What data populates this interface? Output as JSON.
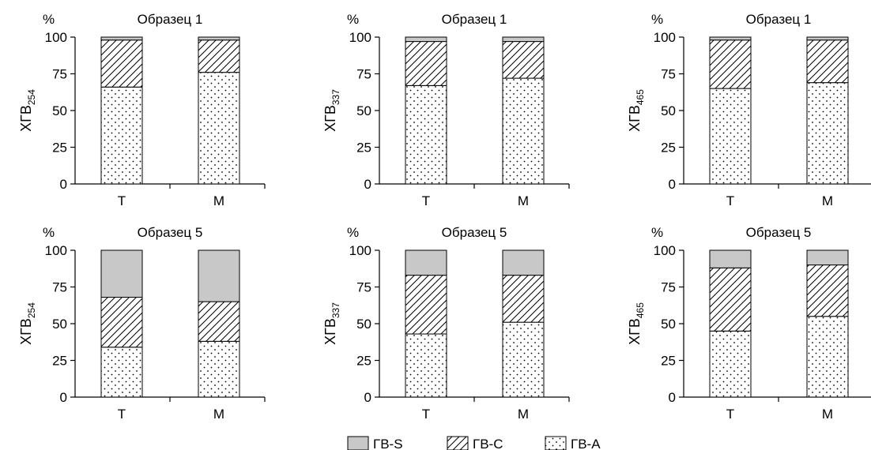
{
  "legend": [
    {
      "label": "ГВ-S",
      "pattern": "solid-gray",
      "color": "#c8c8c8"
    },
    {
      "label": "ГВ-С",
      "pattern": "hatch-diagonal"
    },
    {
      "label": "ГВ-А",
      "pattern": "dots"
    }
  ],
  "chart_data": [
    {
      "type": "bar",
      "stacked": true,
      "title": "Образец 1",
      "unit": "%",
      "ylabel": {
        "base": "ХГВ",
        "sub": "254"
      },
      "ylim": [
        0,
        100
      ],
      "yticks": [
        0,
        25,
        50,
        75,
        100
      ],
      "categories": [
        "Т",
        "М"
      ],
      "series": [
        {
          "name": "ГВ-А",
          "values": [
            66,
            76
          ]
        },
        {
          "name": "ГВ-С",
          "values": [
            32,
            22
          ]
        },
        {
          "name": "ГВ-S",
          "values": [
            2,
            2
          ]
        }
      ]
    },
    {
      "type": "bar",
      "stacked": true,
      "title": "Образец 1",
      "unit": "%",
      "ylabel": {
        "base": "ХГВ",
        "sub": "337"
      },
      "ylim": [
        0,
        100
      ],
      "yticks": [
        0,
        25,
        50,
        75,
        100
      ],
      "categories": [
        "Т",
        "М"
      ],
      "series": [
        {
          "name": "ГВ-А",
          "values": [
            67,
            72
          ]
        },
        {
          "name": "ГВ-С",
          "values": [
            30,
            25
          ]
        },
        {
          "name": "ГВ-S",
          "values": [
            3,
            3
          ]
        }
      ]
    },
    {
      "type": "bar",
      "stacked": true,
      "title": "Образец 1",
      "unit": "%",
      "ylabel": {
        "base": "ХГВ",
        "sub": "465"
      },
      "ylim": [
        0,
        100
      ],
      "yticks": [
        0,
        25,
        50,
        75,
        100
      ],
      "categories": [
        "Т",
        "М"
      ],
      "series": [
        {
          "name": "ГВ-А",
          "values": [
            65,
            69
          ]
        },
        {
          "name": "ГВ-С",
          "values": [
            33,
            29
          ]
        },
        {
          "name": "ГВ-S",
          "values": [
            2,
            2
          ]
        }
      ]
    },
    {
      "type": "bar",
      "stacked": true,
      "title": "Образец 5",
      "unit": "%",
      "ylabel": {
        "base": "ХГВ",
        "sub": "254"
      },
      "ylim": [
        0,
        100
      ],
      "yticks": [
        0,
        25,
        50,
        75,
        100
      ],
      "categories": [
        "Т",
        "М"
      ],
      "series": [
        {
          "name": "ГВ-А",
          "values": [
            34,
            38
          ]
        },
        {
          "name": "ГВ-С",
          "values": [
            34,
            27
          ]
        },
        {
          "name": "ГВ-S",
          "values": [
            32,
            35
          ]
        }
      ]
    },
    {
      "type": "bar",
      "stacked": true,
      "title": "Образец 5",
      "unit": "%",
      "ylabel": {
        "base": "ХГВ",
        "sub": "337"
      },
      "ylim": [
        0,
        100
      ],
      "yticks": [
        0,
        25,
        50,
        75,
        100
      ],
      "categories": [
        "Т",
        "М"
      ],
      "series": [
        {
          "name": "ГВ-А",
          "values": [
            43,
            51
          ]
        },
        {
          "name": "ГВ-С",
          "values": [
            40,
            32
          ]
        },
        {
          "name": "ГВ-S",
          "values": [
            17,
            17
          ]
        }
      ]
    },
    {
      "type": "bar",
      "stacked": true,
      "title": "Образец 5",
      "unit": "%",
      "ylabel": {
        "base": "ХГВ",
        "sub": "465"
      },
      "ylim": [
        0,
        100
      ],
      "yticks": [
        0,
        25,
        50,
        75,
        100
      ],
      "categories": [
        "Т",
        "М"
      ],
      "series": [
        {
          "name": "ГВ-А",
          "values": [
            45,
            55
          ]
        },
        {
          "name": "ГВ-С",
          "values": [
            43,
            35
          ]
        },
        {
          "name": "ГВ-S",
          "values": [
            12,
            10
          ]
        }
      ]
    }
  ]
}
